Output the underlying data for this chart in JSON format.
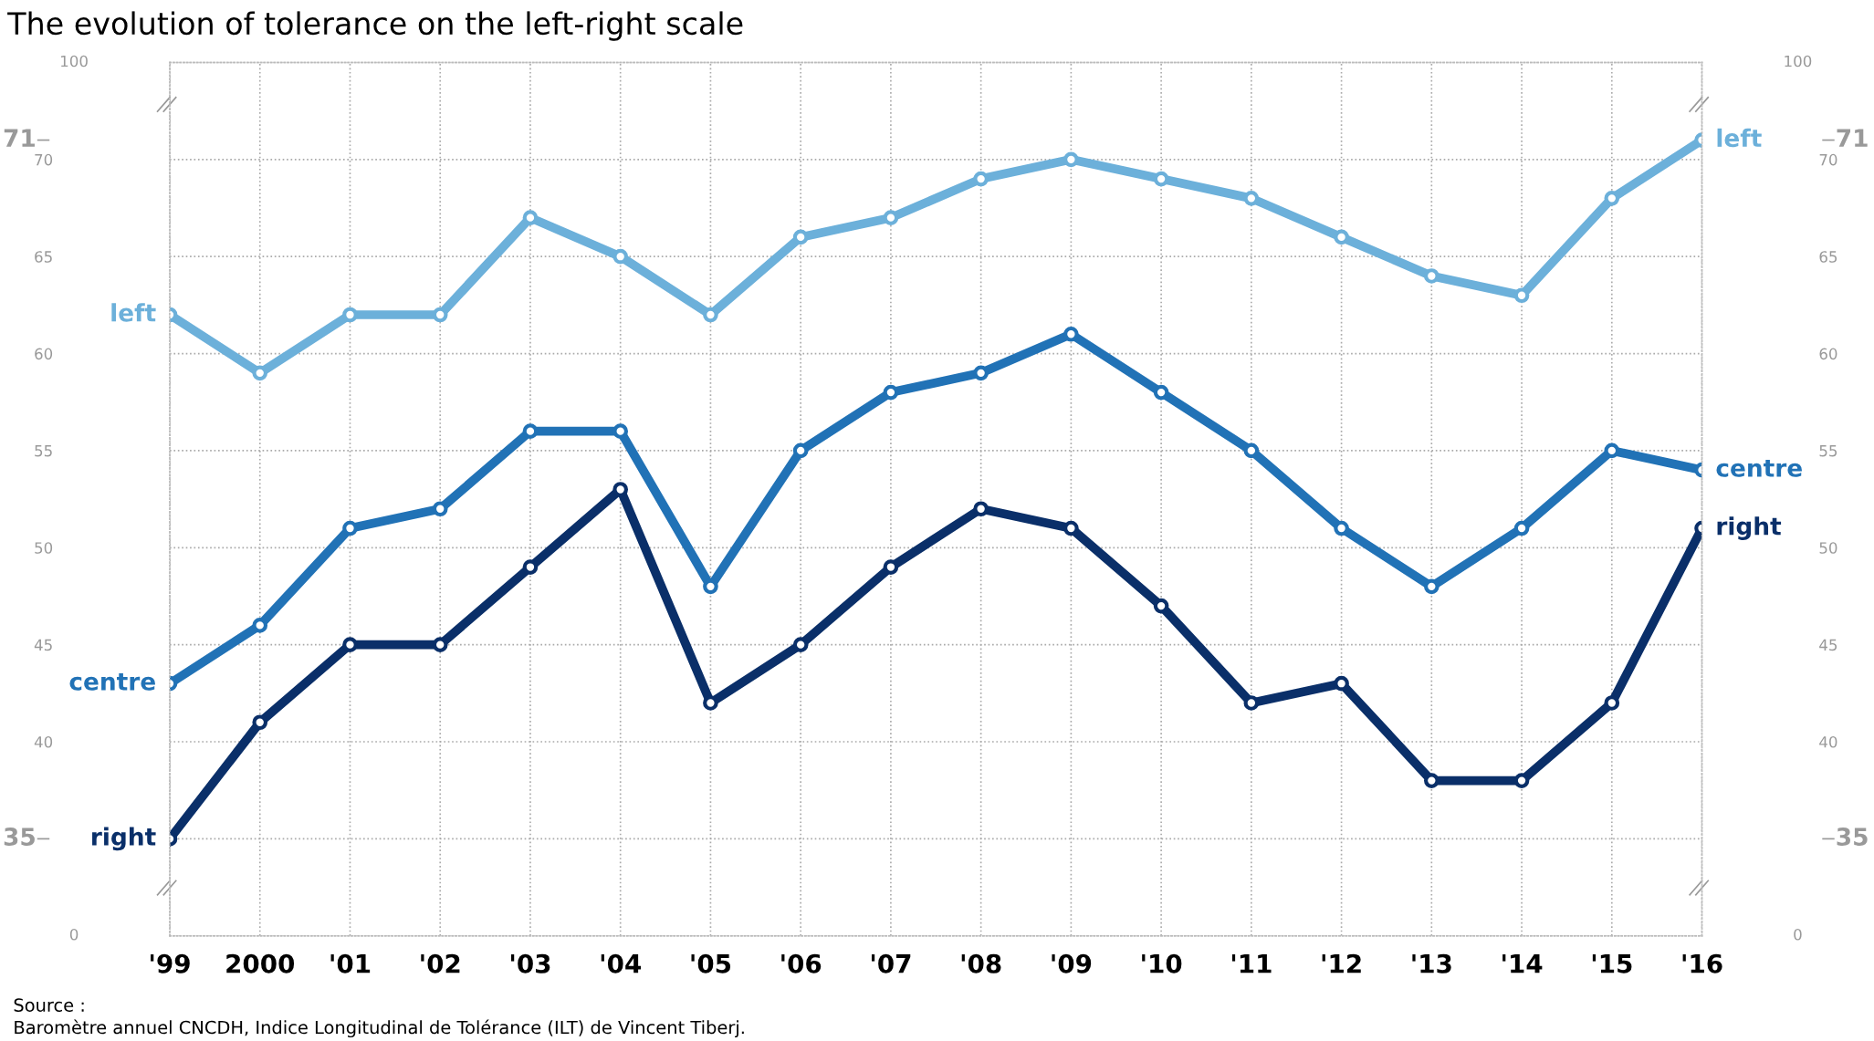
{
  "chart_data": {
    "type": "line",
    "title": "The evolution of tolerance on the left-right scale",
    "categories": [
      "'99",
      "2000",
      "'01",
      "'02",
      "'03",
      "'04",
      "'05",
      "'06",
      "'07",
      "'08",
      "'09",
      "'10",
      "'11",
      "'12",
      "'13",
      "'14",
      "'15",
      "'16"
    ],
    "series": [
      {
        "name": "left",
        "color": "#6cb0da",
        "values": [
          62,
          59,
          62,
          62,
          67,
          65,
          62,
          66,
          67,
          69,
          70,
          69,
          68,
          66,
          64,
          63,
          68,
          71
        ]
      },
      {
        "name": "centre",
        "color": "#2172b6",
        "values": [
          43,
          46,
          51,
          52,
          56,
          56,
          48,
          55,
          58,
          59,
          61,
          58,
          55,
          51,
          48,
          51,
          55,
          54
        ]
      },
      {
        "name": "right",
        "color": "#0a2f69",
        "values": [
          35,
          41,
          45,
          45,
          49,
          53,
          42,
          45,
          49,
          52,
          51,
          47,
          42,
          43,
          38,
          38,
          42,
          51
        ]
      }
    ],
    "ylim": [
      30,
      75
    ],
    "yticks": [
      {
        "value": 35,
        "label": null
      },
      40,
      45,
      50,
      55,
      60,
      65,
      70
    ],
    "y2lim": [
      30,
      75
    ],
    "y2ticks": [
      40,
      45,
      50,
      55,
      60,
      65,
      70
    ],
    "annotations": [
      "100",
      "0",
      "71",
      "35",
      "Source :",
      "Baromètre annuel CNCDH, Indice Longitudinal de Tolérance (ILT) de Vincent Tiberj."
    ],
    "grid": true,
    "legend": false,
    "marker": "circle",
    "line_style": "solid"
  }
}
